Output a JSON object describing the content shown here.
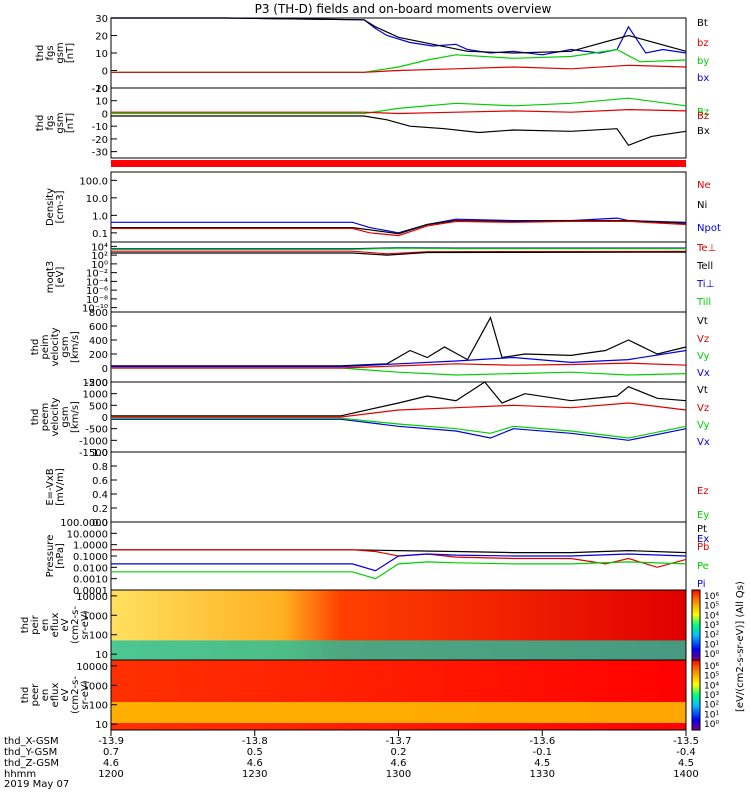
{
  "title": "P3 (TH-D) fields and on-board moments overview",
  "colors": {
    "black": "#000000",
    "red": "#e00000",
    "green": "#00d000",
    "blue": "#0000e0",
    "status_red": "#ff0000"
  },
  "chart_data": [
    {
      "type": "line",
      "panel": "fgs_gsm_magnitude",
      "ylabel": [
        "thd",
        "fgs",
        "gsm",
        "[nT]"
      ],
      "ylim": [
        -10,
        30
      ],
      "ticks": [
        "30",
        "20",
        "10",
        "0",
        "-10"
      ],
      "tick_values": [
        30,
        20,
        10,
        0,
        -10
      ],
      "legend": [
        {
          "label": "Bt",
          "color": "#000000"
        },
        {
          "label": "bz",
          "color": "#e00000"
        },
        {
          "label": "by",
          "color": "#00d000"
        },
        {
          "label": "bx",
          "color": "#0000e0"
        }
      ],
      "series": [
        {
          "color": "#0000e0",
          "x": [
            0,
            0.2,
            0.44,
            0.46,
            0.48,
            0.52,
            0.56,
            0.6,
            0.62,
            0.66,
            0.7,
            0.75,
            0.8,
            0.85,
            0.88,
            0.9,
            0.93,
            0.96,
            1.0
          ],
          "values": [
            30,
            30,
            29,
            24,
            20,
            16,
            14,
            15,
            12,
            10,
            11,
            9,
            12,
            10,
            12,
            25,
            10,
            12,
            10
          ]
        },
        {
          "color": "#000000",
          "x": [
            0,
            0.2,
            0.44,
            0.46,
            0.5,
            0.56,
            0.62,
            0.7,
            0.8,
            0.9,
            1.0
          ],
          "values": [
            30,
            30,
            29,
            25,
            19,
            15,
            11,
            10,
            11,
            20,
            11
          ]
        },
        {
          "color": "#00d000",
          "x": [
            0,
            0.2,
            0.44,
            0.5,
            0.55,
            0.6,
            0.7,
            0.8,
            0.88,
            0.92,
            1.0
          ],
          "values": [
            -1,
            -1,
            -1,
            2,
            6,
            9,
            7,
            8,
            12,
            5,
            6
          ]
        },
        {
          "color": "#e00000",
          "x": [
            0,
            0.2,
            0.44,
            0.5,
            0.6,
            0.7,
            0.8,
            0.9,
            1.0
          ],
          "values": [
            -1,
            -1,
            -1,
            0,
            1,
            2,
            1,
            3,
            2
          ]
        }
      ]
    },
    {
      "type": "line",
      "panel": "fgs_gsm_components",
      "ylabel": [
        "thd",
        "fgs",
        "gsm",
        "[nT]"
      ],
      "ylim": [
        -35,
        20
      ],
      "ticks": [
        "20",
        "10",
        "0",
        "-10",
        "-20",
        "-30"
      ],
      "tick_values": [
        20,
        10,
        0,
        -10,
        -20,
        -30
      ],
      "legend": [
        {
          "label": "Bz",
          "color": "#00d000"
        },
        {
          "label": "Bz",
          "color": "#e00000"
        },
        {
          "label": "Bx",
          "color": "#000000"
        }
      ],
      "series": [
        {
          "color": "#00d000",
          "x": [
            0,
            0.2,
            0.44,
            0.5,
            0.6,
            0.7,
            0.8,
            0.9,
            1.0
          ],
          "values": [
            0,
            0,
            0,
            4,
            8,
            6,
            8,
            12,
            6
          ]
        },
        {
          "color": "#e00000",
          "x": [
            0,
            0.2,
            0.44,
            0.5,
            0.6,
            0.7,
            0.8,
            0.9,
            1.0
          ],
          "values": [
            1,
            1,
            1,
            0,
            1,
            2,
            1,
            3,
            2
          ]
        },
        {
          "color": "#000000",
          "x": [
            0,
            0.2,
            0.44,
            0.48,
            0.52,
            0.58,
            0.64,
            0.7,
            0.8,
            0.88,
            0.9,
            0.94,
            1.0
          ],
          "values": [
            -2,
            -2,
            -2,
            -5,
            -10,
            -12,
            -15,
            -13,
            -14,
            -12,
            -25,
            -18,
            -14
          ]
        }
      ]
    },
    {
      "type": "line",
      "panel": "density",
      "ylabel": [
        "Density",
        "[cm-3]"
      ],
      "scale": "log",
      "ylim": [
        0.03,
        300
      ],
      "ticks": [
        "100.0",
        "10.0",
        "1.0",
        "0.1"
      ],
      "tick_values": [
        100,
        10,
        1,
        0.1
      ],
      "legend": [
        {
          "label": "Ne",
          "color": "#e00000"
        },
        {
          "label": "Ni",
          "color": "#000000"
        },
        {
          "label": "Npot",
          "color": "#0000e0"
        }
      ],
      "series": [
        {
          "color": "#0000e0",
          "x": [
            0,
            0.2,
            0.42,
            0.45,
            0.5,
            0.55,
            0.6,
            0.7,
            0.8,
            0.88,
            0.9,
            1.0
          ],
          "values": [
            0.4,
            0.4,
            0.4,
            0.2,
            0.1,
            0.3,
            0.6,
            0.5,
            0.5,
            0.7,
            0.5,
            0.4
          ]
        },
        {
          "color": "#000000",
          "x": [
            0,
            0.2,
            0.42,
            0.45,
            0.5,
            0.55,
            0.6,
            0.7,
            0.8,
            0.9,
            1.0
          ],
          "values": [
            0.2,
            0.2,
            0.2,
            0.15,
            0.09,
            0.3,
            0.5,
            0.45,
            0.5,
            0.5,
            0.35
          ]
        },
        {
          "color": "#e00000",
          "x": [
            0,
            0.2,
            0.42,
            0.45,
            0.5,
            0.55,
            0.6,
            0.7,
            0.8,
            0.9,
            1.0
          ],
          "values": [
            0.18,
            0.18,
            0.18,
            0.1,
            0.07,
            0.25,
            0.45,
            0.4,
            0.45,
            0.45,
            0.3
          ]
        }
      ]
    },
    {
      "type": "line",
      "panel": "moqt3_temperature",
      "ylabel": [
        "moqt3",
        "[eV]"
      ],
      "scale": "log",
      "ylim": [
        1e-11,
        100000.0
      ],
      "ticks": [
        "10⁴",
        "10²",
        "10⁰",
        "10⁻²",
        "10⁻⁴",
        "10⁻⁶",
        "10⁻⁸",
        "10⁻¹⁰"
      ],
      "tick_values": [
        10000.0,
        100.0,
        1.0,
        0.01,
        0.0001,
        1e-06,
        1e-08,
        1e-10
      ],
      "legend": [
        {
          "label": "Te⊥",
          "color": "#e00000"
        },
        {
          "label": "Tell",
          "color": "#000000"
        },
        {
          "label": "Ti⊥",
          "color": "#0000e0"
        },
        {
          "label": "Till",
          "color": "#00d000"
        }
      ],
      "series": [
        {
          "color": "#0000e0",
          "x": [
            0,
            0.42,
            0.5,
            0.6,
            1.0
          ],
          "values": [
            3000,
            3000,
            5000,
            4000,
            4000
          ]
        },
        {
          "color": "#00d000",
          "x": [
            0,
            0.42,
            0.5,
            0.6,
            1.0
          ],
          "values": [
            2000,
            2000,
            4000,
            3000,
            3000
          ]
        },
        {
          "color": "#e00000",
          "x": [
            0,
            0.42,
            0.48,
            0.55,
            1.0
          ],
          "values": [
            800,
            800,
            200,
            600,
            700
          ]
        },
        {
          "color": "#000000",
          "x": [
            0,
            0.42,
            0.48,
            0.55,
            1.0
          ],
          "values": [
            300,
            300,
            100,
            400,
            500
          ]
        }
      ]
    },
    {
      "type": "line",
      "panel": "peim_velocity",
      "ylabel": [
        "thd",
        "peim",
        "velocity",
        "gsm",
        "[km/s]"
      ],
      "ylim": [
        -200,
        800
      ],
      "ticks": [
        "800",
        "600",
        "400",
        "200",
        "0",
        "-200"
      ],
      "tick_values": [
        800,
        600,
        400,
        200,
        0,
        -200
      ],
      "legend": [
        {
          "label": "Vt",
          "color": "#000000"
        },
        {
          "label": "Vz",
          "color": "#e00000"
        },
        {
          "label": "Vy",
          "color": "#00d000"
        },
        {
          "label": "Vx",
          "color": "#0000e0"
        }
      ],
      "series": [
        {
          "color": "#000000",
          "x": [
            0,
            0.4,
            0.48,
            0.52,
            0.55,
            0.58,
            0.62,
            0.66,
            0.68,
            0.72,
            0.8,
            0.86,
            0.9,
            0.95,
            1.0
          ],
          "values": [
            30,
            30,
            60,
            250,
            150,
            300,
            120,
            720,
            150,
            200,
            180,
            250,
            400,
            200,
            300
          ]
        },
        {
          "color": "#0000e0",
          "x": [
            0,
            0.4,
            0.5,
            0.6,
            0.7,
            0.8,
            0.9,
            1.0
          ],
          "values": [
            20,
            20,
            60,
            100,
            150,
            80,
            120,
            250
          ]
        },
        {
          "color": "#00d000",
          "x": [
            0,
            0.4,
            0.5,
            0.6,
            0.7,
            0.8,
            0.9,
            1.0
          ],
          "values": [
            0,
            0,
            -60,
            -100,
            -80,
            -60,
            -100,
            -80
          ]
        },
        {
          "color": "#e00000",
          "x": [
            0,
            0.4,
            0.5,
            0.6,
            0.7,
            0.8,
            0.9,
            1.0
          ],
          "values": [
            0,
            0,
            30,
            60,
            40,
            50,
            70,
            40
          ]
        }
      ]
    },
    {
      "type": "line",
      "panel": "peem_velocity",
      "ylabel": [
        "thd",
        "peem",
        "velocity",
        "gsm",
        "[km/s]"
      ],
      "ylim": [
        -1500,
        1500
      ],
      "ticks": [
        "1500",
        "1000",
        "500",
        "0",
        "-500",
        "-1000",
        "-1500"
      ],
      "tick_values": [
        1500,
        1000,
        500,
        0,
        -500,
        -1000,
        -1500
      ],
      "legend": [
        {
          "label": "Vt",
          "color": "#000000"
        },
        {
          "label": "Vz",
          "color": "#e00000"
        },
        {
          "label": "Vy",
          "color": "#00d000"
        },
        {
          "label": "Vx",
          "color": "#0000e0"
        }
      ],
      "series": [
        {
          "color": "#0000e0",
          "x": [
            0,
            0.4,
            0.5,
            0.6,
            0.66,
            0.7,
            0.8,
            0.9,
            1.0
          ],
          "values": [
            -100,
            -100,
            -400,
            -600,
            -900,
            -500,
            -700,
            -1000,
            -500
          ]
        },
        {
          "color": "#00d000",
          "x": [
            0,
            0.4,
            0.5,
            0.6,
            0.66,
            0.7,
            0.8,
            0.9,
            1.0
          ],
          "values": [
            -50,
            -50,
            -300,
            -500,
            -700,
            -400,
            -600,
            -900,
            -400
          ]
        },
        {
          "color": "#000000",
          "x": [
            0,
            0.4,
            0.5,
            0.55,
            0.6,
            0.65,
            0.68,
            0.72,
            0.8,
            0.88,
            0.9,
            0.95,
            1.0
          ],
          "values": [
            50,
            50,
            600,
            900,
            700,
            1500,
            600,
            1000,
            700,
            900,
            1300,
            800,
            700
          ]
        },
        {
          "color": "#e00000",
          "x": [
            0,
            0.4,
            0.5,
            0.6,
            0.7,
            0.8,
            0.9,
            1.0
          ],
          "values": [
            0,
            0,
            300,
            400,
            500,
            400,
            600,
            300
          ]
        }
      ]
    },
    {
      "type": "line",
      "panel": "electric_field",
      "ylabel": [
        "E=-VxB",
        "[mV/m]"
      ],
      "ylim": [
        0,
        1
      ],
      "ticks": [
        "1.0",
        "0.8",
        "0.6",
        "0.4",
        "0.2",
        "0.0"
      ],
      "tick_values": [
        1.0,
        0.8,
        0.6,
        0.4,
        0.2,
        0.0
      ],
      "legend": [
        {
          "label": "Ez",
          "color": "#e00000"
        },
        {
          "label": "Ey",
          "color": "#00d000"
        },
        {
          "label": "Ex",
          "color": "#0000e0"
        }
      ],
      "series": []
    },
    {
      "type": "line",
      "panel": "pressure",
      "ylabel": [
        "Pressure",
        "[nPa]"
      ],
      "scale": "log",
      "ylim": [
        0.0001,
        100
      ],
      "ticks": [
        "100.0000",
        "10.0000",
        "1.0000",
        "0.1000",
        "0.0100",
        "0.0010",
        "0.0001"
      ],
      "tick_values": [
        100,
        10,
        1,
        0.1,
        0.01,
        0.001,
        0.0001
      ],
      "legend": [
        {
          "label": "Pt",
          "color": "#000000"
        },
        {
          "label": "Pb",
          "color": "#e00000"
        },
        {
          "label": "Pe",
          "color": "#00d000"
        },
        {
          "label": "Pi",
          "color": "#0000e0"
        }
      ],
      "series": [
        {
          "color": "#000000",
          "x": [
            0,
            0.42,
            0.5,
            0.6,
            0.7,
            0.8,
            0.9,
            1.0
          ],
          "values": [
            0.35,
            0.35,
            0.3,
            0.25,
            0.2,
            0.2,
            0.3,
            0.2
          ]
        },
        {
          "color": "#e00000",
          "x": [
            0,
            0.42,
            0.46,
            0.5,
            0.55,
            0.6,
            0.7,
            0.8,
            0.86,
            0.9,
            0.95,
            1.0
          ],
          "values": [
            0.35,
            0.35,
            0.25,
            0.1,
            0.15,
            0.08,
            0.06,
            0.06,
            0.02,
            0.06,
            0.01,
            0.05
          ]
        },
        {
          "color": "#0000e0",
          "x": [
            0,
            0.42,
            0.46,
            0.5,
            0.55,
            0.6,
            0.7,
            0.8,
            0.9,
            1.0
          ],
          "values": [
            0.02,
            0.02,
            0.005,
            0.1,
            0.15,
            0.12,
            0.1,
            0.1,
            0.15,
            0.1
          ]
        },
        {
          "color": "#00d000",
          "x": [
            0,
            0.42,
            0.46,
            0.5,
            0.55,
            0.6,
            0.7,
            0.8,
            0.9,
            1.0
          ],
          "values": [
            0.004,
            0.004,
            0.001,
            0.02,
            0.03,
            0.025,
            0.02,
            0.02,
            0.03,
            0.02
          ]
        }
      ]
    },
    {
      "type": "heatmap",
      "panel": "peir_en_eflux",
      "ylabel": [
        "thd",
        "peir",
        "en",
        "eflux",
        "eV",
        "(cm2-s-",
        "sr-eV)"
      ],
      "scale": "log",
      "ylim": [
        5,
        20000
      ],
      "ticks": [
        "10000",
        "1000",
        "100",
        "10"
      ],
      "tick_values": [
        10000,
        1000,
        100,
        10
      ]
    },
    {
      "type": "heatmap",
      "panel": "peer_en_eflux",
      "ylabel": [
        "thd",
        "peer",
        "en",
        "eflux",
        "eV",
        "(cm2-s-",
        "sr-eV)"
      ],
      "scale": "log",
      "ylim": [
        5,
        20000
      ],
      "ticks": [
        "10000",
        "1000",
        "100",
        "10"
      ],
      "tick_values": [
        10000,
        1000,
        100,
        10
      ]
    }
  ],
  "colorbar": {
    "ticks": [
      "10⁶",
      "10⁵",
      "10⁴",
      "10³",
      "10²",
      "10¹",
      "10⁰"
    ],
    "label": "[eV/(cm2-s-sr-eV)] (All Qs)"
  },
  "x_axis": {
    "labels": [
      "thd_X-GSM",
      "thd_Y-GSM",
      "thd_Z-GSM",
      "hhmm",
      "2019 May 07"
    ],
    "columns": [
      {
        "x": "-13.9",
        "y": "0.7",
        "z": "4.6",
        "hhmm": "1200"
      },
      {
        "x": "-13.8",
        "y": "0.5",
        "z": "4.6",
        "hhmm": "1230"
      },
      {
        "x": "-13.7",
        "y": "0.2",
        "z": "4.6",
        "hhmm": "1300"
      },
      {
        "x": "-13.6",
        "y": "-0.1",
        "z": "4.5",
        "hhmm": "1330"
      },
      {
        "x": "-13.5",
        "y": "-0.4",
        "z": "4.5",
        "hhmm": "1400"
      }
    ]
  }
}
